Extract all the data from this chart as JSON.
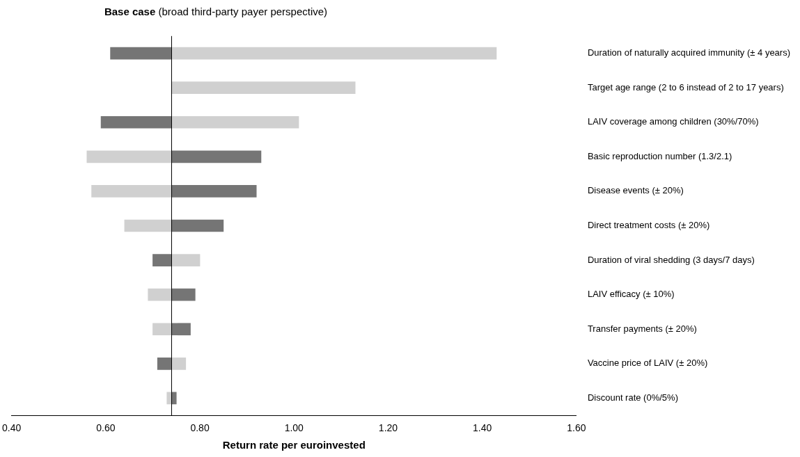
{
  "chart_data": {
    "type": "bar",
    "orientation": "horizontal",
    "title": "Base case",
    "subtitle": "(broad third-party payer perspective)",
    "xlabel": "Return rate per euroinvested",
    "categories": [
      "Duration of naturally acquired immunity (± 4 years)",
      "Target age range (2 to 6 instead of 2 to 17 years)",
      "LAIV coverage among children (30%/70%)",
      "Basic reproduction number (1.3/2.1)",
      "Disease events (± 20%)",
      "Direct treatment costs (± 20%)",
      "Duration of viral shedding (3 days/7 days)",
      "LAIV efficacy (± 10%)",
      "Transfer payments (± 20%)",
      "Vaccine price of LAIV (± 20%)",
      "Discount rate (0%/5%)"
    ],
    "series": [
      {
        "color": "#757575",
        "base": [
          0.74,
          null,
          0.74,
          0.74,
          0.74,
          0.74,
          0.74,
          0.74,
          0.74,
          0.74,
          0.74
        ],
        "values": [
          -0.13,
          null,
          -0.15,
          0.19,
          0.18,
          0.11,
          -0.04,
          0.05,
          0.04,
          -0.03,
          0.01
        ]
      },
      {
        "color": "#d0d0d0",
        "base": [
          0.74,
          0.74,
          0.74,
          0.74,
          0.74,
          0.74,
          0.74,
          0.74,
          0.74,
          0.74,
          0.74
        ],
        "values": [
          0.69,
          0.39,
          0.27,
          -0.18,
          -0.17,
          -0.1,
          0.06,
          -0.05,
          -0.04,
          0.03,
          -0.01
        ]
      }
    ],
    "xlim": [
      0.4,
      1.6
    ],
    "xticks": [
      {
        "value": 0.4,
        "label": "0.40"
      },
      {
        "value": 0.6,
        "label": "0.60"
      },
      {
        "value": 0.8,
        "label": "0.80"
      },
      {
        "value": 1.0,
        "label": "1.00"
      },
      {
        "value": 1.2,
        "label": "1.20"
      },
      {
        "value": 1.4,
        "label": "1.40"
      },
      {
        "value": 1.6,
        "label": "1.60"
      }
    ],
    "ref_lines": [
      {
        "axis": "x",
        "value": 0.74,
        "color": "#000000"
      }
    ]
  }
}
